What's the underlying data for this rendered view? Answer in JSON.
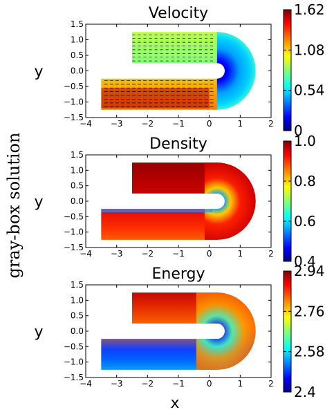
{
  "figure": {
    "side_label": "gray-box solution",
    "xlabel": "x",
    "ylabel": "y"
  },
  "chart_data": [
    {
      "type": "heatmap",
      "title": "Velocity",
      "xlabel": "",
      "ylabel": "y",
      "xlim": [
        -4,
        2
      ],
      "ylim": [
        -1.5,
        1.5
      ],
      "x_ticks": [
        -4,
        -3,
        -2,
        -1,
        0,
        1,
        2
      ],
      "y_ticks": [
        -1.5,
        -1.0,
        -0.5,
        0.0,
        0.5,
        1.0,
        1.5
      ],
      "colorbar": {
        "min": 0,
        "max": 1.62,
        "ticks": [
          "0",
          "0.54",
          "1.08",
          "1.62"
        ]
      },
      "field": "velocity magnitude with arrows"
    },
    {
      "type": "heatmap",
      "title": "Density",
      "xlabel": "",
      "ylabel": "y",
      "xlim": [
        -4,
        2
      ],
      "ylim": [
        -1.5,
        1.5
      ],
      "x_ticks": [
        -4,
        -3,
        -2,
        -1,
        0,
        1,
        2
      ],
      "y_ticks": [
        -1.5,
        -1.0,
        -0.5,
        0.0,
        0.5,
        1.0,
        1.5
      ],
      "colorbar": {
        "min": 0.4,
        "max": 1.0,
        "ticks": [
          "0.4",
          "0.6",
          "0.8",
          "1.0"
        ]
      },
      "field": "density"
    },
    {
      "type": "heatmap",
      "title": "Energy",
      "xlabel": "x",
      "ylabel": "y",
      "xlim": [
        -4,
        2
      ],
      "ylim": [
        -1.5,
        1.5
      ],
      "x_ticks": [
        -4,
        -3,
        -2,
        -1,
        0,
        1,
        2
      ],
      "y_ticks": [
        -1.5,
        -1.0,
        -0.5,
        0.0,
        0.5,
        1.0,
        1.5
      ],
      "colorbar": {
        "min": 2.4,
        "max": 2.94,
        "ticks": [
          "2.4",
          "2.58",
          "2.76",
          "2.94"
        ]
      },
      "field": "energy"
    }
  ],
  "colors": {
    "jet": [
      "#00007f",
      "#0000ff",
      "#00ffff",
      "#ffff00",
      "#ff0000",
      "#7f0000"
    ]
  }
}
